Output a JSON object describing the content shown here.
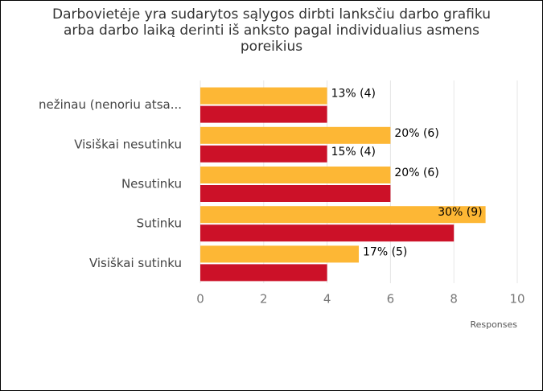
{
  "chart_data": {
    "type": "hbar",
    "title": "Darbovietėje yra sudarytos sąlygos dirbti lanksčiu darbo grafiku arba darbo laiką derinti iš anksto pagal individualius asmens poreikius",
    "categories": [
      "nežinau (nenoriu atsa...",
      "Visiškai nesutinku",
      "Nesutinku",
      "Sutinku",
      "Visiškai sutinku"
    ],
    "series": [
      {
        "color": "#fdb735",
        "values": [
          4,
          6,
          6,
          9,
          5
        ],
        "value_labels": [
          "13% (4)",
          "20% (6)",
          "20% (6)",
          "30% (9)",
          "17% (5)"
        ]
      },
      {
        "color": "#cc1128",
        "values": [
          4,
          4,
          6,
          8,
          4
        ],
        "value_labels": [
          null,
          "15% (4)",
          null,
          null,
          null
        ]
      }
    ],
    "xlabel": "Responses",
    "xlim": [
      0,
      10
    ],
    "xticks": [
      0,
      2,
      4,
      6,
      8,
      10
    ],
    "grid": true
  }
}
